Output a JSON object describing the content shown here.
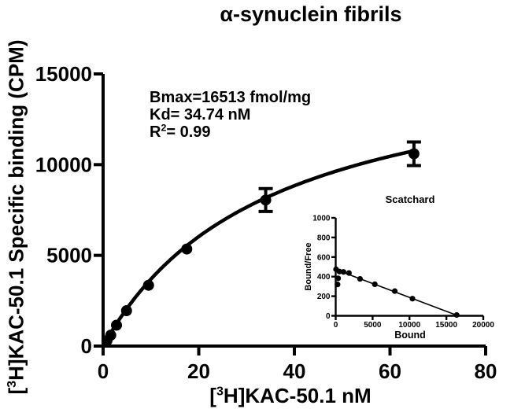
{
  "colors": {
    "ink": "#000000",
    "background": "#ffffff"
  },
  "labels": {
    "title": "α-synuclein fibrils",
    "isotope_sup": "3",
    "ylabel_pre": "[",
    "ylabel_post": "H]KAC-50.1 Specific binding (CPM)",
    "xlabel_pre": "[",
    "xlabel_post": "H]KAC-50.1 nM",
    "annotation": {
      "bmax_line": "Bmax=16513 fmol/mg",
      "kd_line": "Kd= 34.74 nM",
      "r2_base": "R",
      "r2_sup": "2",
      "r2_rest": "= 0.99"
    },
    "inset": {
      "title": "Scatchard",
      "xlabel": "Bound",
      "ylabel": "Bound/Free"
    }
  },
  "chart_data": [
    {
      "id": "saturation-binding-main",
      "type": "scatter",
      "title": "α-synuclein fibrils",
      "xlabel": "[3H]KAC-50.1 nM",
      "ylabel": "[3H]KAC-50.1 Specific binding (CPM)",
      "xlim": [
        0,
        80
      ],
      "ylim": [
        0,
        15000
      ],
      "xticks": [
        0,
        20,
        40,
        60,
        80
      ],
      "yticks": [
        0,
        5000,
        10000,
        15000
      ],
      "grid": false,
      "legend": false,
      "points": {
        "x": [
          0.8,
          1.6,
          2.8,
          4.9,
          9.5,
          17.5,
          34,
          65
        ],
        "y": [
          300,
          600,
          1150,
          1950,
          3350,
          5350,
          8050,
          10600
        ],
        "yerr": [
          0,
          0,
          0,
          0,
          0,
          0,
          630,
          650
        ]
      },
      "fit": {
        "model": "one site specific binding",
        "bmax_fmol_per_mg": 16513,
        "kd_nM": 34.74,
        "r_squared": 0.99,
        "curve_x_range": [
          0.8,
          65
        ]
      }
    },
    {
      "id": "scatchard-inset",
      "type": "scatter",
      "title": "Scatchard",
      "xlabel": "Bound",
      "ylabel": "Bound/Free",
      "xlim": [
        0,
        20000
      ],
      "ylim": [
        0,
        1000
      ],
      "xticks": [
        0,
        5000,
        10000,
        15000,
        20000
      ],
      "yticks": [
        0,
        200,
        400,
        600,
        800,
        1000
      ],
      "grid": false,
      "legend": false,
      "points": {
        "x": [
          50,
          250,
          330,
          500,
          1050,
          1800,
          3300,
          5300,
          8000,
          10400,
          16400
        ],
        "y": [
          475,
          320,
          383,
          452,
          448,
          437,
          377,
          322,
          252,
          175,
          8
        ]
      },
      "line": {
        "x": [
          0,
          16600
        ],
        "y": [
          472,
          0
        ]
      }
    }
  ]
}
